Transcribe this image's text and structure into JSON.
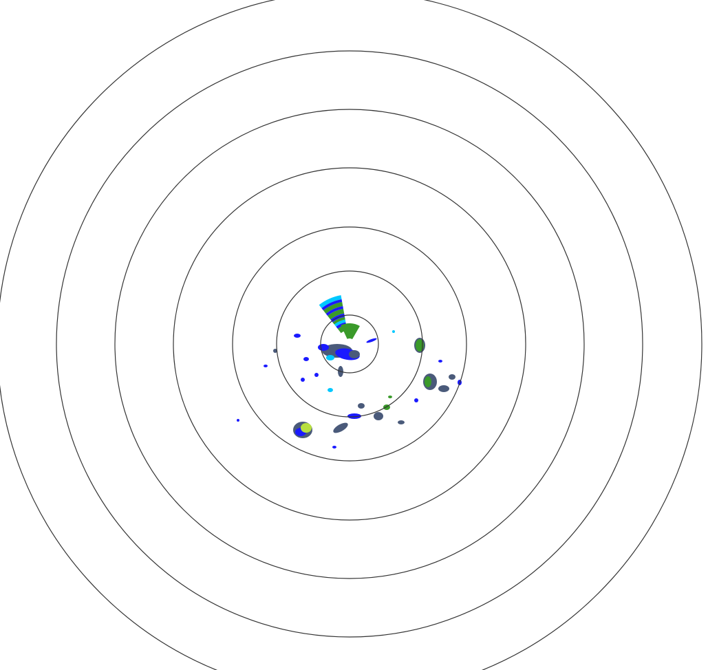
{
  "radar": {
    "range_ring_count": 7,
    "ring_color": "#333333",
    "background_color": "#ffffff",
    "reflectivity_colors": {
      "light_cyan": "#00c8ff",
      "blue": "#1a1aff",
      "dark_slate": "#4a5a7a",
      "green": "#3a9a2a",
      "yellow_green": "#b8e040"
    }
  }
}
